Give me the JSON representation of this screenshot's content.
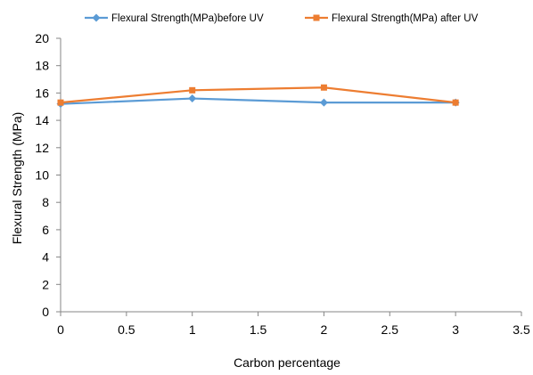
{
  "chart_data": {
    "type": "line",
    "title": "",
    "xlabel": "Carbon percentage",
    "ylabel": "Flexural Strength (MPa)",
    "xlim": [
      0,
      3.5
    ],
    "ylim": [
      0,
      20
    ],
    "x_ticks": [
      "0",
      "0.5",
      "1",
      "1.5",
      "2",
      "2.5",
      "3",
      "3.5"
    ],
    "y_ticks": [
      "0",
      "2",
      "4",
      "6",
      "8",
      "10",
      "12",
      "14",
      "16",
      "18",
      "20"
    ],
    "grid": false,
    "legend_position": "top",
    "series": [
      {
        "name": "Flexural Strength(MPa)before UV",
        "color": "#5B9BD5",
        "marker": "diamond",
        "x": [
          0,
          1,
          2,
          3
        ],
        "y": [
          15.2,
          15.6,
          15.3,
          15.3
        ]
      },
      {
        "name": "Flexural Strength(MPa) after UV",
        "color": "#ED7D31",
        "marker": "square",
        "x": [
          0,
          1,
          2,
          3
        ],
        "y": [
          15.3,
          16.2,
          16.4,
          15.3
        ]
      }
    ]
  }
}
